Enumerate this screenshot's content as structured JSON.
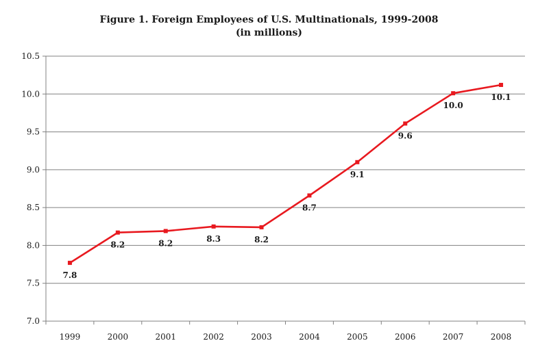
{
  "chart_data": {
    "type": "line",
    "title": "Figure 1. Foreign Employees of U.S. Multinationals, 1999-2008",
    "subtitle": "(in millions)",
    "xlabel": "",
    "ylabel": "",
    "categories": [
      "1999",
      "2000",
      "2001",
      "2002",
      "2003",
      "2004",
      "2005",
      "2006",
      "2007",
      "2008"
    ],
    "series": [
      {
        "values": [
          7.77,
          8.17,
          8.19,
          8.25,
          8.24,
          8.66,
          9.1,
          9.61,
          10.01,
          10.12
        ],
        "data_labels": [
          "7.8",
          "8.2",
          "8.2",
          "8.3",
          "8.2",
          "8.7",
          "9.1",
          "9.6",
          "10.0",
          "10.1"
        ],
        "color": "#e8191f"
      }
    ],
    "ylim": [
      7.0,
      10.5
    ],
    "yticks": [
      "7.0",
      "7.5",
      "8.0",
      "8.5",
      "9.0",
      "9.5",
      "10.0",
      "10.5"
    ],
    "grid": true,
    "legend": "none",
    "gridline_color": "#808080",
    "axis_color": "#808080"
  }
}
